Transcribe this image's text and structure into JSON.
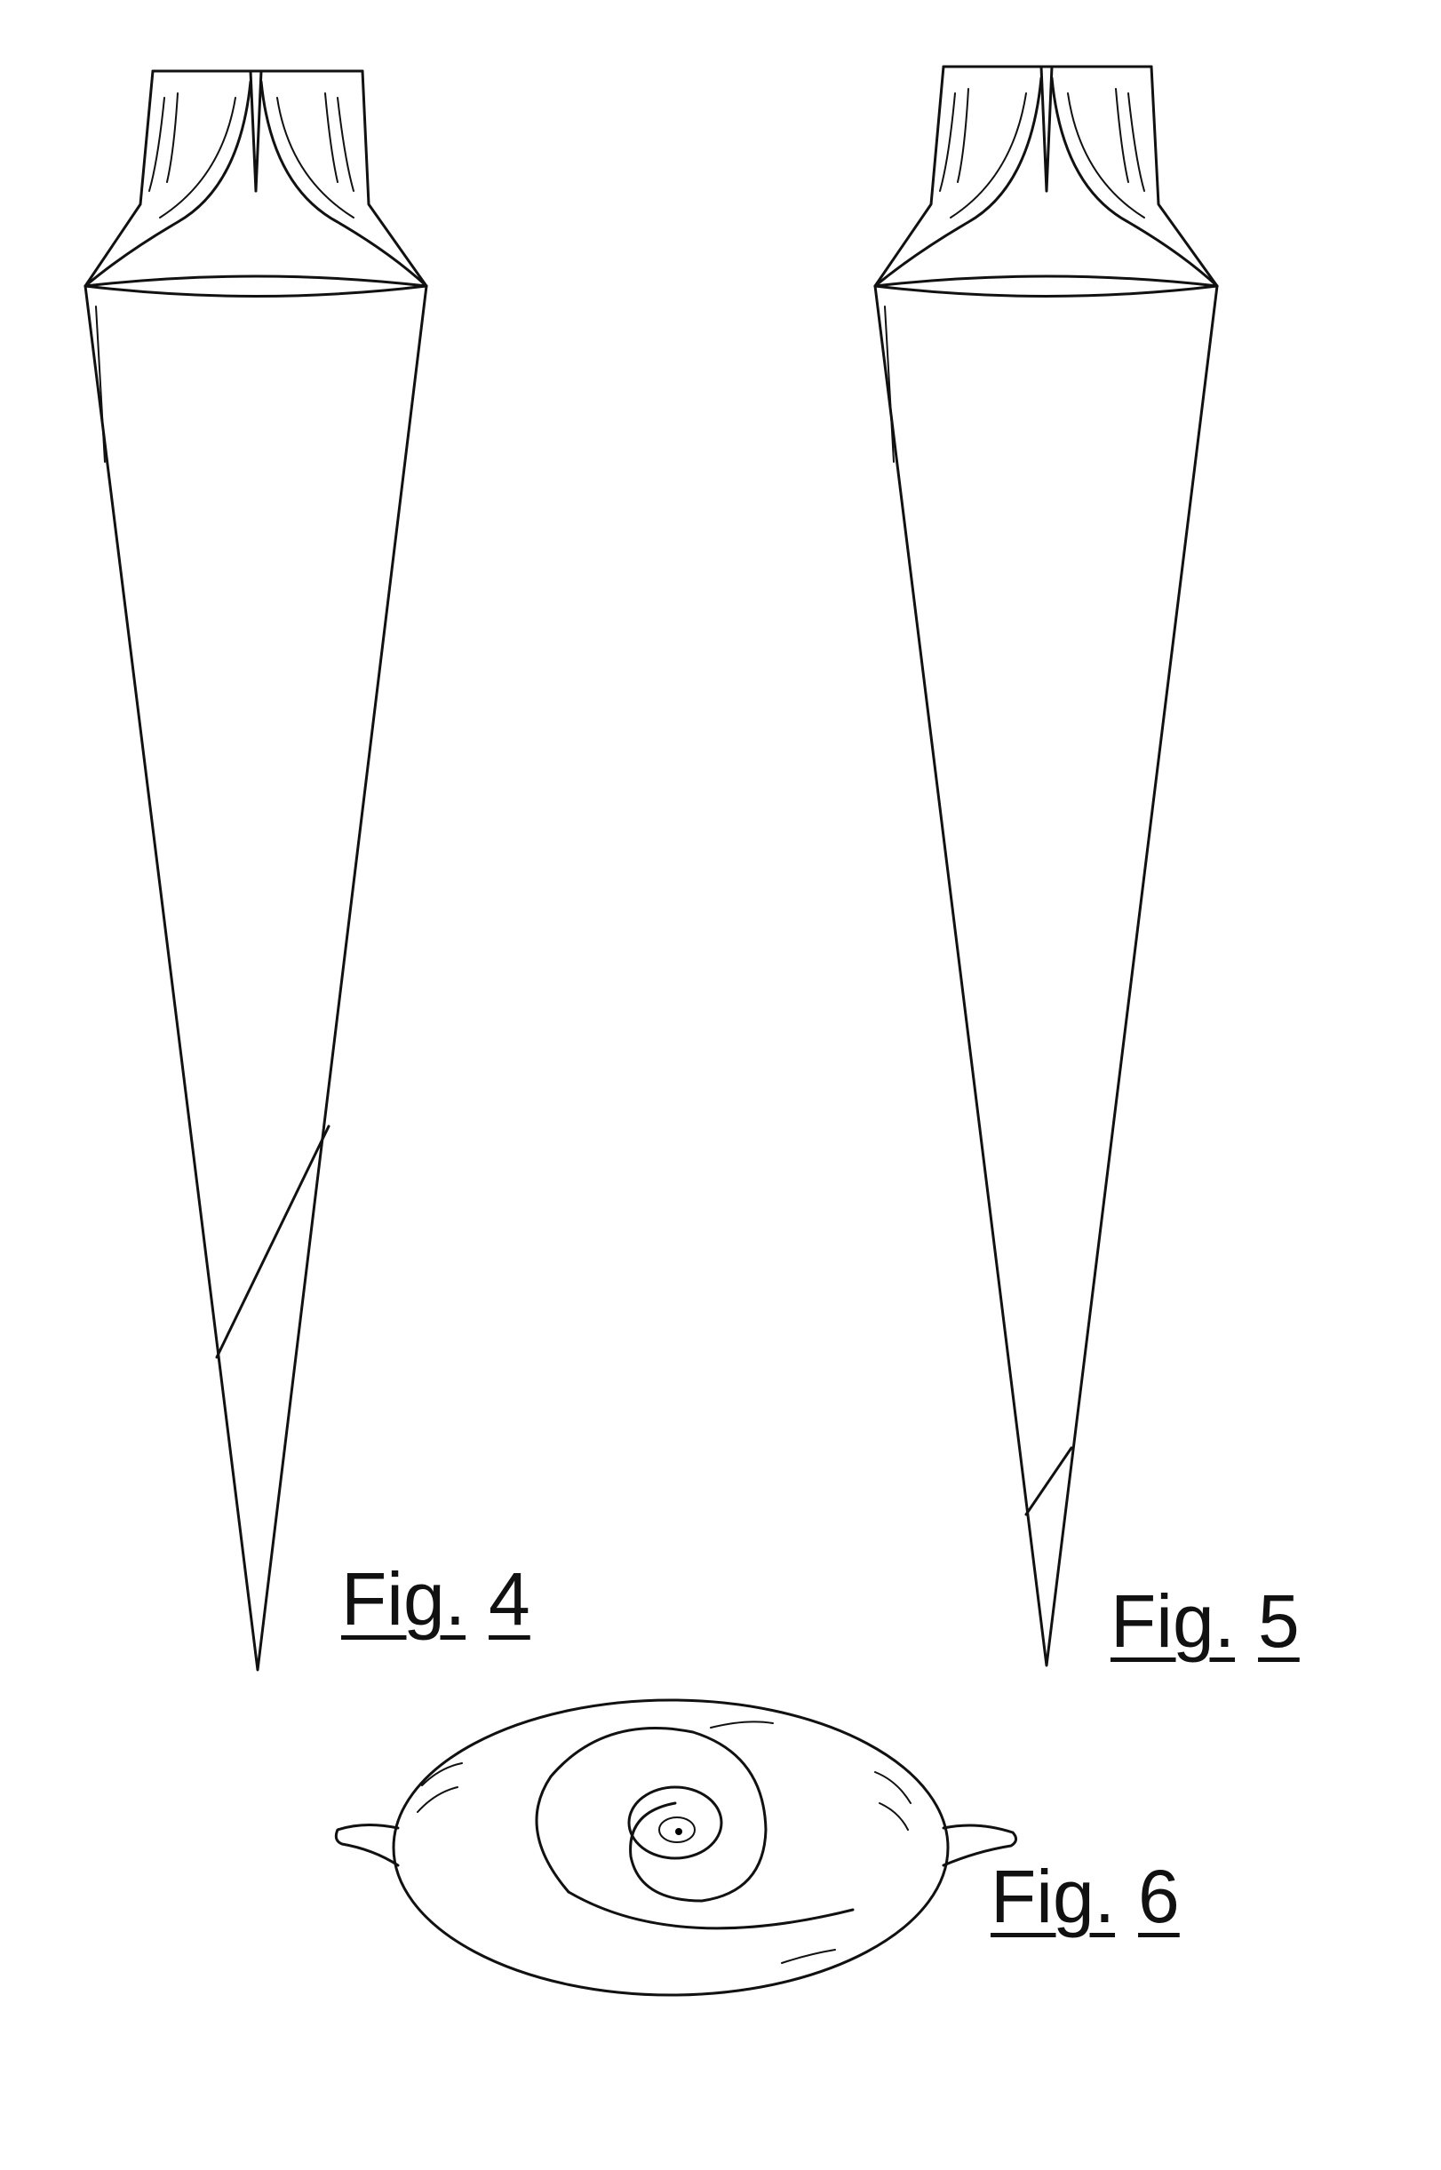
{
  "figures": [
    {
      "id": "fig4",
      "label_word": "Fig.",
      "label_num": "4"
    },
    {
      "id": "fig5",
      "label_word": "Fig.",
      "label_num": "5"
    },
    {
      "id": "fig6",
      "label_word": "Fig.",
      "label_num": "6"
    }
  ],
  "colors": {
    "ink": "#111111",
    "paper": "#ffffff"
  }
}
